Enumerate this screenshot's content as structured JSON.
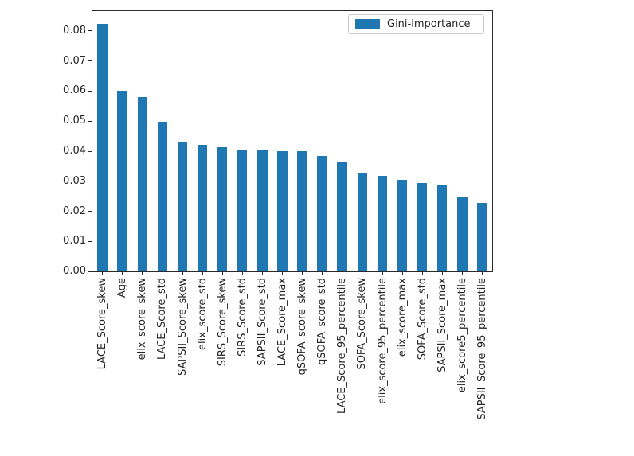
{
  "chart_data": {
    "type": "bar",
    "title": "",
    "xlabel": "",
    "ylabel": "",
    "legend": {
      "label": "Gini-importance",
      "position": "upper right",
      "swatch_color": "#1f77b4"
    },
    "categories": [
      "LACE_Score_skew",
      "Age",
      "elix_score_skew",
      "LACE_Score_std",
      "SAPSII_Score_skew",
      "elix_score_std",
      "SIRS_Score_skew",
      "SIRS_Score_std",
      "SAPSII_Score_std",
      "LACE_Score_max",
      "qSOFA_score_skew",
      "qSOFA_score_std",
      "LACE_Score_95_percentile",
      "SOFA_Score_skew",
      "elix_score_95_percentile",
      "elix_score_max",
      "SOFA_Score_std",
      "SAPSII_Score_max",
      "elix_score5_percentile",
      "SAPSII_Score_95_percentile"
    ],
    "values": [
      0.0825,
      0.06,
      0.058,
      0.0498,
      0.043,
      0.042,
      0.0414,
      0.0405,
      0.0404,
      0.04,
      0.0399,
      0.0384,
      0.0362,
      0.0325,
      0.0317,
      0.0305,
      0.0295,
      0.0285,
      0.025,
      0.0228
    ],
    "ylim": [
      0,
      0.0866
    ],
    "yticks": [
      0.0,
      0.01,
      0.02,
      0.03,
      0.04,
      0.05,
      0.06,
      0.07,
      0.08
    ],
    "ytick_label_format": "0.00",
    "x_tick_rotation": 90,
    "grid": false,
    "bar_color": "#1f77b4"
  },
  "colors": {
    "background": "#ffffff",
    "axis": "#2b2b2b",
    "bar": "#1f77b4",
    "legend_border": "#cccccc",
    "text": "#262626"
  }
}
